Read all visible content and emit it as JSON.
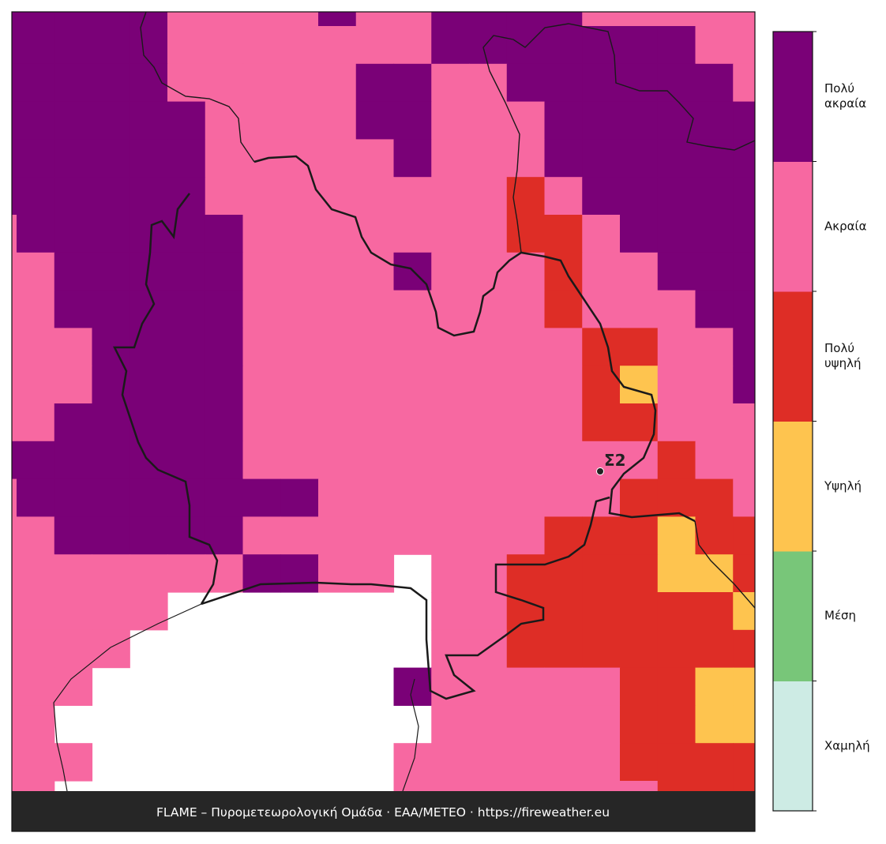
{
  "map": {
    "levels": [
      {
        "label": "Χαμηλή",
        "color": "#cdebe4"
      },
      {
        "label": "Μέση",
        "color": "#78c679"
      },
      {
        "label": "Υψηλή",
        "color": "#fec44f"
      },
      {
        "label": "Πολύ υψηλή",
        "color": "#de2d26"
      },
      {
        "label": "Ακραία",
        "color": "#f768a1"
      },
      {
        "label": "Πολύ ακραία",
        "color": "#7a0177"
      }
    ],
    "grid": [
      [
        5,
        5,
        5,
        5,
        5,
        4,
        4,
        4,
        4,
        5,
        4,
        4,
        5,
        5,
        5,
        5,
        4,
        4,
        4,
        4,
        4
      ],
      [
        5,
        5,
        5,
        5,
        5,
        4,
        4,
        4,
        4,
        4,
        4,
        4,
        5,
        5,
        5,
        5,
        5,
        5,
        5,
        4,
        4
      ],
      [
        5,
        5,
        5,
        5,
        5,
        4,
        4,
        4,
        4,
        4,
        5,
        5,
        4,
        4,
        5,
        5,
        5,
        5,
        5,
        5,
        4
      ],
      [
        5,
        5,
        5,
        5,
        5,
        5,
        4,
        4,
        4,
        4,
        5,
        5,
        4,
        4,
        4,
        5,
        5,
        5,
        5,
        5,
        5
      ],
      [
        5,
        5,
        5,
        5,
        5,
        5,
        4,
        4,
        4,
        4,
        4,
        5,
        4,
        4,
        4,
        5,
        5,
        5,
        5,
        5,
        5
      ],
      [
        5,
        5,
        5,
        5,
        5,
        5,
        4,
        4,
        4,
        4,
        4,
        4,
        4,
        4,
        3,
        4,
        5,
        5,
        5,
        5,
        5
      ],
      [
        4,
        5,
        5,
        5,
        5,
        5,
        5,
        4,
        4,
        4,
        4,
        4,
        4,
        4,
        3,
        3,
        4,
        5,
        5,
        5,
        5
      ],
      [
        4,
        4,
        5,
        5,
        5,
        5,
        5,
        4,
        4,
        4,
        4,
        5,
        4,
        4,
        4,
        3,
        4,
        4,
        5,
        5,
        5
      ],
      [
        4,
        4,
        5,
        5,
        5,
        5,
        5,
        4,
        4,
        4,
        4,
        4,
        4,
        4,
        4,
        3,
        4,
        4,
        4,
        5,
        5
      ],
      [
        4,
        4,
        4,
        5,
        5,
        5,
        5,
        4,
        4,
        4,
        4,
        4,
        4,
        4,
        4,
        4,
        3,
        3,
        4,
        4,
        5
      ],
      [
        4,
        4,
        4,
        5,
        5,
        5,
        5,
        4,
        4,
        4,
        4,
        4,
        4,
        4,
        4,
        4,
        3,
        2,
        4,
        4,
        5
      ],
      [
        4,
        4,
        5,
        5,
        5,
        5,
        5,
        4,
        4,
        4,
        4,
        4,
        4,
        4,
        4,
        4,
        3,
        3,
        4,
        4,
        4
      ],
      [
        5,
        5,
        5,
        5,
        5,
        5,
        5,
        4,
        4,
        4,
        4,
        4,
        4,
        4,
        4,
        4,
        4,
        4,
        3,
        4,
        4
      ],
      [
        4,
        5,
        5,
        5,
        5,
        5,
        5,
        5,
        5,
        4,
        4,
        4,
        4,
        4,
        4,
        4,
        4,
        3,
        3,
        3,
        4
      ],
      [
        4,
        4,
        5,
        5,
        5,
        5,
        5,
        4,
        4,
        4,
        4,
        4,
        4,
        4,
        4,
        3,
        3,
        3,
        2,
        3,
        3
      ],
      [
        4,
        4,
        4,
        4,
        4,
        4,
        4,
        5,
        5,
        4,
        4,
        null,
        4,
        4,
        3,
        3,
        3,
        3,
        2,
        2,
        3
      ],
      [
        4,
        4,
        4,
        4,
        4,
        null,
        null,
        null,
        null,
        null,
        null,
        null,
        4,
        4,
        3,
        3,
        3,
        3,
        3,
        3,
        2
      ],
      [
        4,
        4,
        4,
        4,
        null,
        null,
        null,
        null,
        null,
        null,
        null,
        null,
        4,
        4,
        3,
        3,
        3,
        3,
        3,
        3,
        3
      ],
      [
        4,
        4,
        4,
        null,
        null,
        null,
        null,
        null,
        null,
        null,
        null,
        5,
        4,
        4,
        4,
        4,
        4,
        3,
        3,
        2,
        2
      ],
      [
        4,
        4,
        null,
        null,
        null,
        null,
        null,
        null,
        null,
        null,
        null,
        null,
        4,
        4,
        4,
        4,
        4,
        3,
        3,
        2,
        2
      ],
      [
        4,
        4,
        4,
        null,
        null,
        null,
        null,
        null,
        null,
        null,
        null,
        4,
        4,
        4,
        4,
        4,
        4,
        3,
        3,
        3,
        3
      ],
      [
        4,
        4,
        null,
        null,
        null,
        null,
        null,
        null,
        null,
        null,
        null,
        4,
        4,
        4,
        4,
        4,
        4,
        4,
        3,
        3,
        3
      ]
    ],
    "station": {
      "label": "Σ2"
    }
  },
  "footer": "FLAME – Πυρομετεωρολογική Ομάδα · ΕΑΑ/METEO · https://fireweather.eu"
}
